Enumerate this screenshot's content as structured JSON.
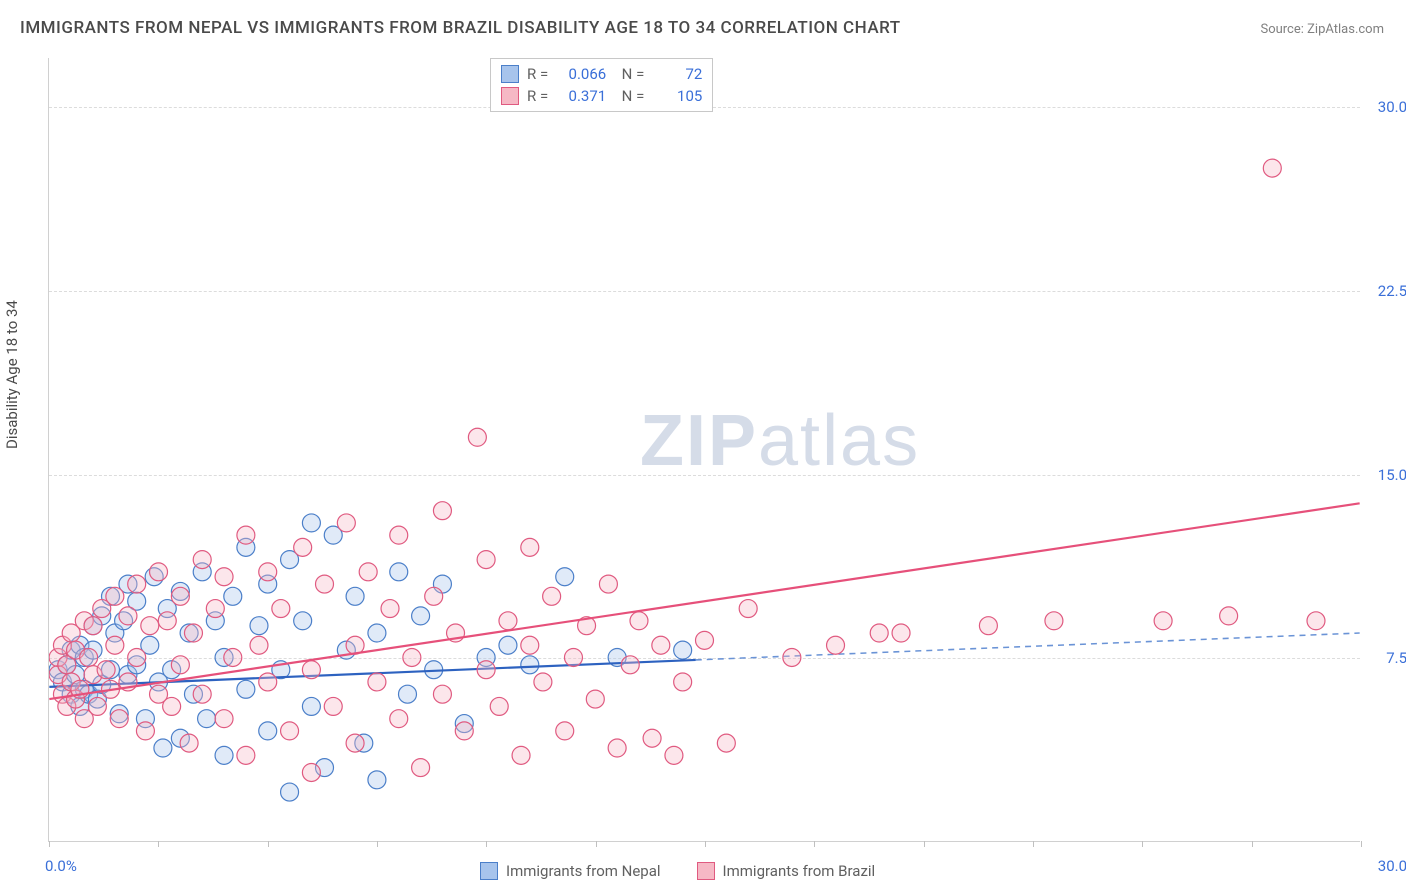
{
  "title": "IMMIGRANTS FROM NEPAL VS IMMIGRANTS FROM BRAZIL DISABILITY AGE 18 TO 34 CORRELATION CHART",
  "source": "Source: ZipAtlas.com",
  "y_axis_title": "Disability Age 18 to 34",
  "watermark_a": "ZIP",
  "watermark_b": "atlas",
  "chart": {
    "type": "scatter",
    "background_color": "#ffffff",
    "grid_color": "#dcdcdc",
    "axis_color": "#d0d0d0",
    "label_color": "#3a6fd8",
    "title_color": "#4a4a4a",
    "title_fontsize": 17,
    "label_fontsize": 15,
    "xlim": [
      0,
      30
    ],
    "ylim": [
      0,
      32
    ],
    "x_axis_min_label": "0.0%",
    "x_axis_max_label": "30.0%",
    "y_ticks": [
      {
        "value": 7.5,
        "label": "7.5%"
      },
      {
        "value": 15.0,
        "label": "15.0%"
      },
      {
        "value": 22.5,
        "label": "22.5%"
      },
      {
        "value": 30.0,
        "label": "30.0%"
      }
    ],
    "x_tick_positions": [
      0,
      2.5,
      5,
      7.5,
      10,
      12.5,
      15,
      17.5,
      20,
      22.5,
      25,
      27.5,
      30
    ],
    "marker_radius": 9,
    "marker_fill_opacity": 0.35,
    "marker_stroke_width": 1.2,
    "line_width": 2.2,
    "dash_pattern": "6,5"
  },
  "legend_top": {
    "r_label": "R =",
    "n_label": "N =",
    "rows": [
      {
        "swatch_fill": "#a7c4ec",
        "swatch_stroke": "#4b7fc9",
        "r": "0.066",
        "n": "72"
      },
      {
        "swatch_fill": "#f6b8c5",
        "swatch_stroke": "#e05a80",
        "r": "0.371",
        "n": "105"
      }
    ]
  },
  "legend_bottom": [
    {
      "swatch_fill": "#a7c4ec",
      "swatch_stroke": "#4b7fc9",
      "label": "Immigrants from Nepal"
    },
    {
      "swatch_fill": "#f6b8c5",
      "swatch_stroke": "#e05a80",
      "label": "Immigrants from Brazil"
    }
  ],
  "series": [
    {
      "name": "nepal",
      "color_fill": "#a7c4ec",
      "color_stroke": "#4b7fc9",
      "trend": {
        "x1": 0,
        "y1": 6.3,
        "x2": 14.8,
        "y2": 7.4,
        "ext_x2": 30,
        "ext_y2": 8.5,
        "solid_color": "#2d62c0",
        "dash_color": "#6a93d6"
      },
      "points": [
        [
          0.2,
          7.0
        ],
        [
          0.3,
          6.5
        ],
        [
          0.4,
          7.2
        ],
        [
          0.5,
          6.0
        ],
        [
          0.5,
          7.8
        ],
        [
          0.6,
          6.8
        ],
        [
          0.7,
          5.5
        ],
        [
          0.7,
          8.0
        ],
        [
          0.8,
          6.2
        ],
        [
          0.8,
          7.5
        ],
        [
          0.9,
          6.0
        ],
        [
          1.0,
          7.8
        ],
        [
          1.0,
          8.8
        ],
        [
          1.1,
          5.8
        ],
        [
          1.2,
          9.2
        ],
        [
          1.2,
          6.4
        ],
        [
          1.4,
          10.0
        ],
        [
          1.4,
          7.0
        ],
        [
          1.5,
          8.5
        ],
        [
          1.6,
          5.2
        ],
        [
          1.7,
          9.0
        ],
        [
          1.8,
          10.5
        ],
        [
          1.8,
          6.8
        ],
        [
          2.0,
          9.8
        ],
        [
          2.0,
          7.2
        ],
        [
          2.2,
          5.0
        ],
        [
          2.3,
          8.0
        ],
        [
          2.4,
          10.8
        ],
        [
          2.5,
          6.5
        ],
        [
          2.6,
          3.8
        ],
        [
          2.7,
          9.5
        ],
        [
          2.8,
          7.0
        ],
        [
          3.0,
          4.2
        ],
        [
          3.0,
          10.2
        ],
        [
          3.2,
          8.5
        ],
        [
          3.3,
          6.0
        ],
        [
          3.5,
          11.0
        ],
        [
          3.6,
          5.0
        ],
        [
          3.8,
          9.0
        ],
        [
          4.0,
          7.5
        ],
        [
          4.0,
          3.5
        ],
        [
          4.2,
          10.0
        ],
        [
          4.5,
          12.0
        ],
        [
          4.5,
          6.2
        ],
        [
          4.8,
          8.8
        ],
        [
          5.0,
          4.5
        ],
        [
          5.0,
          10.5
        ],
        [
          5.3,
          7.0
        ],
        [
          5.5,
          11.5
        ],
        [
          5.5,
          2.0
        ],
        [
          5.8,
          9.0
        ],
        [
          6.0,
          13.0
        ],
        [
          6.0,
          5.5
        ],
        [
          6.3,
          3.0
        ],
        [
          6.5,
          12.5
        ],
        [
          6.8,
          7.8
        ],
        [
          7.0,
          10.0
        ],
        [
          7.2,
          4.0
        ],
        [
          7.5,
          8.5
        ],
        [
          7.5,
          2.5
        ],
        [
          8.0,
          11.0
        ],
        [
          8.2,
          6.0
        ],
        [
          8.5,
          9.2
        ],
        [
          8.8,
          7.0
        ],
        [
          9.0,
          10.5
        ],
        [
          9.5,
          4.8
        ],
        [
          10.0,
          7.5
        ],
        [
          10.5,
          8.0
        ],
        [
          11.8,
          10.8
        ],
        [
          11.0,
          7.2
        ],
        [
          13.0,
          7.5
        ],
        [
          14.5,
          7.8
        ]
      ]
    },
    {
      "name": "brazil",
      "color_fill": "#f6b8c5",
      "color_stroke": "#e05a80",
      "trend": {
        "x1": 0,
        "y1": 5.8,
        "x2": 30,
        "y2": 13.8,
        "solid_color": "#e6507a"
      },
      "points": [
        [
          0.2,
          6.8
        ],
        [
          0.2,
          7.5
        ],
        [
          0.3,
          6.0
        ],
        [
          0.3,
          8.0
        ],
        [
          0.4,
          5.5
        ],
        [
          0.4,
          7.2
        ],
        [
          0.5,
          6.5
        ],
        [
          0.5,
          8.5
        ],
        [
          0.6,
          5.8
        ],
        [
          0.6,
          7.8
        ],
        [
          0.7,
          6.2
        ],
        [
          0.8,
          9.0
        ],
        [
          0.8,
          5.0
        ],
        [
          0.9,
          7.5
        ],
        [
          1.0,
          6.8
        ],
        [
          1.0,
          8.8
        ],
        [
          1.1,
          5.5
        ],
        [
          1.2,
          9.5
        ],
        [
          1.3,
          7.0
        ],
        [
          1.4,
          6.2
        ],
        [
          1.5,
          10.0
        ],
        [
          1.5,
          8.0
        ],
        [
          1.6,
          5.0
        ],
        [
          1.8,
          9.2
        ],
        [
          1.8,
          6.5
        ],
        [
          2.0,
          10.5
        ],
        [
          2.0,
          7.5
        ],
        [
          2.2,
          4.5
        ],
        [
          2.3,
          8.8
        ],
        [
          2.5,
          6.0
        ],
        [
          2.5,
          11.0
        ],
        [
          2.7,
          9.0
        ],
        [
          2.8,
          5.5
        ],
        [
          3.0,
          10.0
        ],
        [
          3.0,
          7.2
        ],
        [
          3.2,
          4.0
        ],
        [
          3.3,
          8.5
        ],
        [
          3.5,
          11.5
        ],
        [
          3.5,
          6.0
        ],
        [
          3.8,
          9.5
        ],
        [
          4.0,
          5.0
        ],
        [
          4.0,
          10.8
        ],
        [
          4.2,
          7.5
        ],
        [
          4.5,
          12.5
        ],
        [
          4.5,
          3.5
        ],
        [
          4.8,
          8.0
        ],
        [
          5.0,
          11.0
        ],
        [
          5.0,
          6.5
        ],
        [
          5.3,
          9.5
        ],
        [
          5.5,
          4.5
        ],
        [
          5.8,
          12.0
        ],
        [
          6.0,
          7.0
        ],
        [
          6.0,
          2.8
        ],
        [
          6.3,
          10.5
        ],
        [
          6.5,
          5.5
        ],
        [
          6.8,
          13.0
        ],
        [
          7.0,
          8.0
        ],
        [
          7.0,
          4.0
        ],
        [
          7.3,
          11.0
        ],
        [
          7.5,
          6.5
        ],
        [
          7.8,
          9.5
        ],
        [
          8.0,
          5.0
        ],
        [
          8.0,
          12.5
        ],
        [
          8.3,
          7.5
        ],
        [
          8.5,
          3.0
        ],
        [
          8.8,
          10.0
        ],
        [
          9.0,
          6.0
        ],
        [
          9.0,
          13.5
        ],
        [
          9.3,
          8.5
        ],
        [
          9.5,
          4.5
        ],
        [
          9.8,
          16.5
        ],
        [
          10.0,
          7.0
        ],
        [
          10.0,
          11.5
        ],
        [
          10.3,
          5.5
        ],
        [
          10.5,
          9.0
        ],
        [
          10.8,
          3.5
        ],
        [
          11.0,
          8.0
        ],
        [
          11.0,
          12.0
        ],
        [
          11.3,
          6.5
        ],
        [
          11.5,
          10.0
        ],
        [
          11.8,
          4.5
        ],
        [
          12.0,
          7.5
        ],
        [
          12.3,
          8.8
        ],
        [
          12.5,
          5.8
        ],
        [
          12.8,
          10.5
        ],
        [
          13.0,
          3.8
        ],
        [
          13.3,
          7.2
        ],
        [
          13.5,
          9.0
        ],
        [
          13.8,
          4.2
        ],
        [
          14.0,
          8.0
        ],
        [
          14.3,
          3.5
        ],
        [
          14.5,
          6.5
        ],
        [
          15.0,
          8.2
        ],
        [
          15.5,
          4.0
        ],
        [
          16.0,
          9.5
        ],
        [
          17.0,
          7.5
        ],
        [
          18.0,
          8.0
        ],
        [
          19.0,
          8.5
        ],
        [
          19.5,
          8.5
        ],
        [
          21.5,
          8.8
        ],
        [
          23.0,
          9.0
        ],
        [
          25.5,
          9.0
        ],
        [
          27.0,
          9.2
        ],
        [
          28.0,
          27.5
        ],
        [
          29.0,
          9.0
        ]
      ]
    }
  ]
}
